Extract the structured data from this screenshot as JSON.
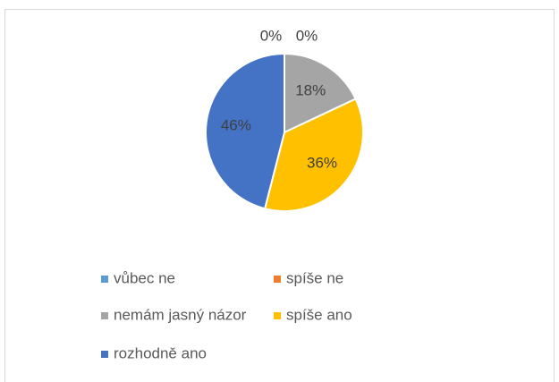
{
  "chart_data": {
    "type": "pie",
    "categories": [
      "vůbec ne",
      "spíše ne",
      "nemám jasný názor",
      "spíše ano",
      "rozhodně ano"
    ],
    "values": [
      0,
      0,
      18,
      36,
      46
    ],
    "value_labels": [
      "0%",
      "0%",
      "18%",
      "36%",
      "46%"
    ],
    "colors": [
      "#5b9bd5",
      "#ed7d31",
      "#a5a5a5",
      "#ffc000",
      "#4472c4"
    ],
    "legend": "bottom"
  }
}
